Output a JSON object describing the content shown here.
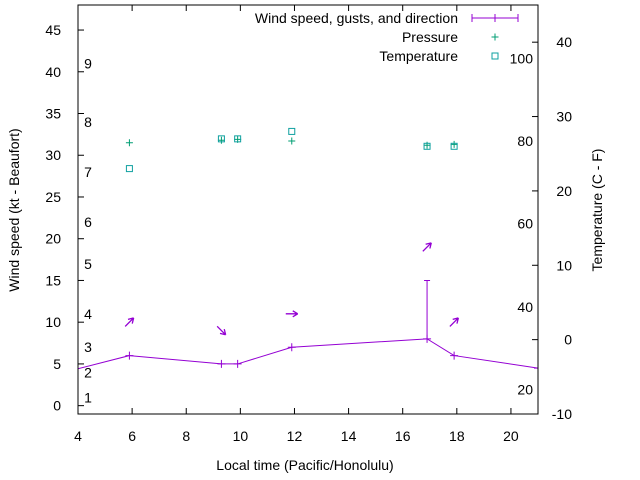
{
  "chart_data": {
    "type": "line",
    "xlabel": "Local time (Pacific/Honolulu)",
    "ylabel": "Wind speed (kt - Beaufort)",
    "y2label": "Temperature (C - F)",
    "xlim": [
      4,
      21
    ],
    "ylim": [
      -1,
      48
    ],
    "y2lim": [
      -10,
      45
    ],
    "x_ticks": [
      4,
      6,
      8,
      10,
      12,
      14,
      16,
      18,
      20
    ],
    "y_ticks": [
      0,
      5,
      10,
      15,
      20,
      25,
      30,
      35,
      40,
      45
    ],
    "y2_ticks": [
      -10,
      0,
      10,
      20,
      30,
      40
    ],
    "beaufort_labels": [
      {
        "label": "1",
        "kt": 1
      },
      {
        "label": "2",
        "kt": 4
      },
      {
        "label": "3",
        "kt": 7
      },
      {
        "label": "4",
        "kt": 11
      },
      {
        "label": "5",
        "kt": 17
      },
      {
        "label": "6",
        "kt": 22
      },
      {
        "label": "7",
        "kt": 28
      },
      {
        "label": "8",
        "kt": 34
      },
      {
        "label": "9",
        "kt": 41
      }
    ],
    "fahrenheit_labels": [
      {
        "label": "20",
        "c": -6.7
      },
      {
        "label": "40",
        "c": 4.4
      },
      {
        "label": "60",
        "c": 15.6
      },
      {
        "label": "80",
        "c": 26.7
      },
      {
        "label": "100",
        "c": 37.8
      }
    ],
    "legend": [
      "Wind speed, gusts, and direction",
      "Pressure",
      "Temperature"
    ],
    "series": [
      {
        "name": "Wind speed, gusts, and direction",
        "color": "#9400d3",
        "points": [
          {
            "x": 3.5,
            "y": 4
          },
          {
            "x": 5.9,
            "y": 6
          },
          {
            "x": 9.3,
            "y": 5
          },
          {
            "x": 9.9,
            "y": 5
          },
          {
            "x": 11.9,
            "y": 7
          },
          {
            "x": 16.9,
            "y": 8,
            "gust": 15
          },
          {
            "x": 17.9,
            "y": 6
          },
          {
            "x": 21,
            "y": 4.5
          }
        ],
        "arrows": [
          {
            "x": 5.9,
            "y": 10,
            "angle": 135
          },
          {
            "x": 9.3,
            "y": 9,
            "angle": 225
          },
          {
            "x": 11.9,
            "y": 11,
            "angle": 180
          },
          {
            "x": 16.9,
            "y": 19,
            "angle": 135
          },
          {
            "x": 17.9,
            "y": 10,
            "angle": 135
          }
        ]
      },
      {
        "name": "Pressure",
        "color": "#009e73",
        "points": [
          {
            "x": 5.9,
            "y": 31.5
          },
          {
            "x": 9.3,
            "y": 31.8
          },
          {
            "x": 9.9,
            "y": 31.9
          },
          {
            "x": 11.9,
            "y": 31.7
          },
          {
            "x": 16.9,
            "y": 31.2
          },
          {
            "x": 17.9,
            "y": 31.3
          }
        ]
      },
      {
        "name": "Temperature",
        "color": "#0fa0a0",
        "y2_points": [
          {
            "x": 5.9,
            "y": 23
          },
          {
            "x": 9.3,
            "y": 27
          },
          {
            "x": 9.9,
            "y": 27
          },
          {
            "x": 11.9,
            "y": 28
          },
          {
            "x": 16.9,
            "y": 26
          },
          {
            "x": 17.9,
            "y": 26
          }
        ]
      }
    ]
  }
}
